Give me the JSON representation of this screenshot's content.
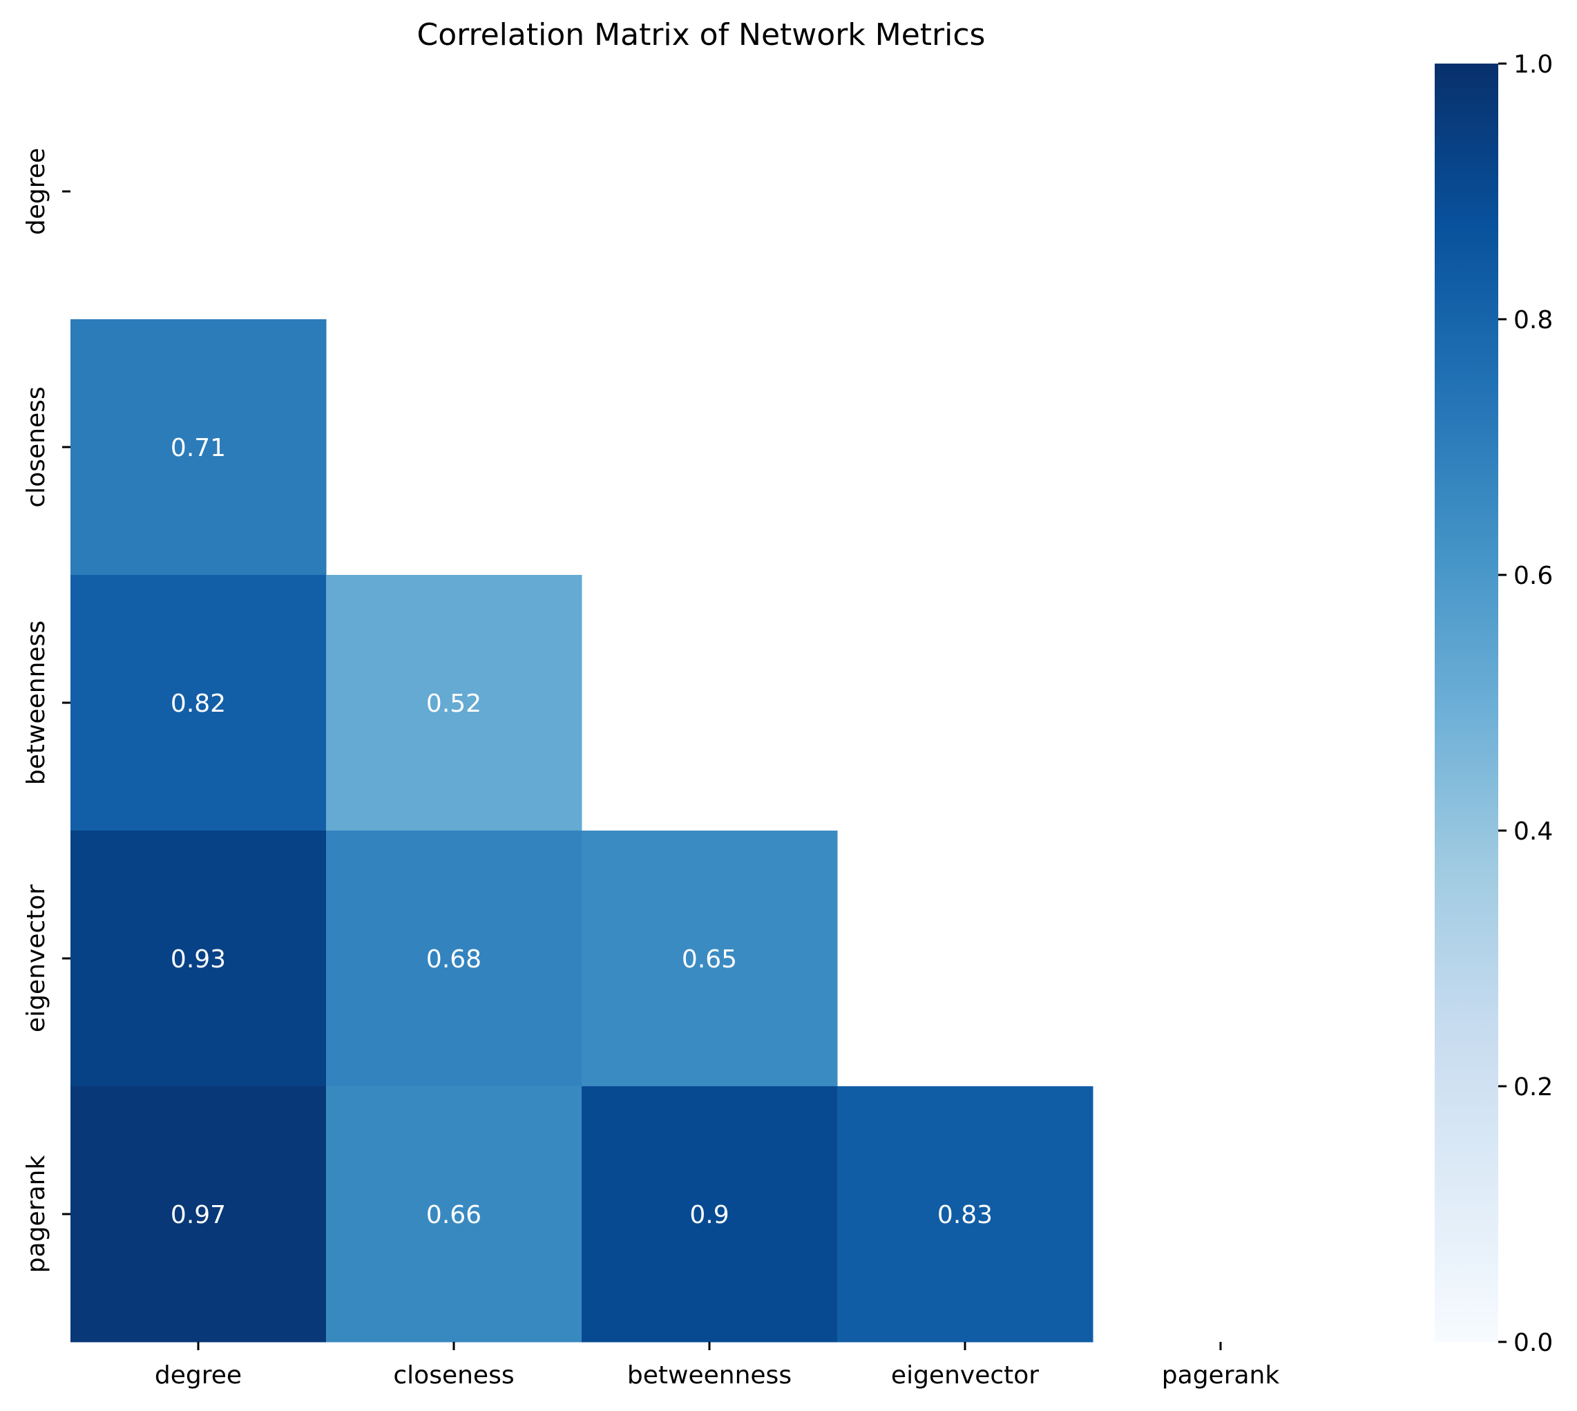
{
  "chart_data": {
    "type": "heatmap",
    "title": "Correlation Matrix of Network Metrics",
    "xlabel": "",
    "ylabel": "",
    "colormap": "Blues",
    "mask": "upper triangle including diagonal",
    "x_categories": [
      "degree",
      "closeness",
      "betweenness",
      "eigenvector",
      "pagerank"
    ],
    "y_categories": [
      "degree",
      "closeness",
      "betweenness",
      "eigenvector",
      "pagerank"
    ],
    "matrix": [
      [
        null,
        null,
        null,
        null,
        null
      ],
      [
        0.71,
        null,
        null,
        null,
        null
      ],
      [
        0.82,
        0.52,
        null,
        null,
        null
      ],
      [
        0.93,
        0.68,
        0.65,
        null,
        null
      ],
      [
        0.97,
        0.66,
        0.9,
        0.83,
        null
      ]
    ],
    "cell_labels": [
      [
        null,
        null,
        null,
        null,
        null
      ],
      [
        "0.71",
        null,
        null,
        null,
        null
      ],
      [
        "0.82",
        "0.52",
        null,
        null,
        null
      ],
      [
        "0.93",
        "0.68",
        "0.65",
        null,
        null
      ],
      [
        "0.97",
        "0.66",
        "0.9",
        "0.83",
        null
      ]
    ],
    "colorbar": {
      "vmin": 0.0,
      "vmax": 1.0,
      "ticks": [
        0.0,
        0.2,
        0.4,
        0.6,
        0.8,
        1.0
      ],
      "tick_labels": [
        "0.0",
        "0.2",
        "0.4",
        "0.6",
        "0.8",
        "1.0"
      ]
    },
    "grid": false,
    "legend": "colorbar-right"
  }
}
